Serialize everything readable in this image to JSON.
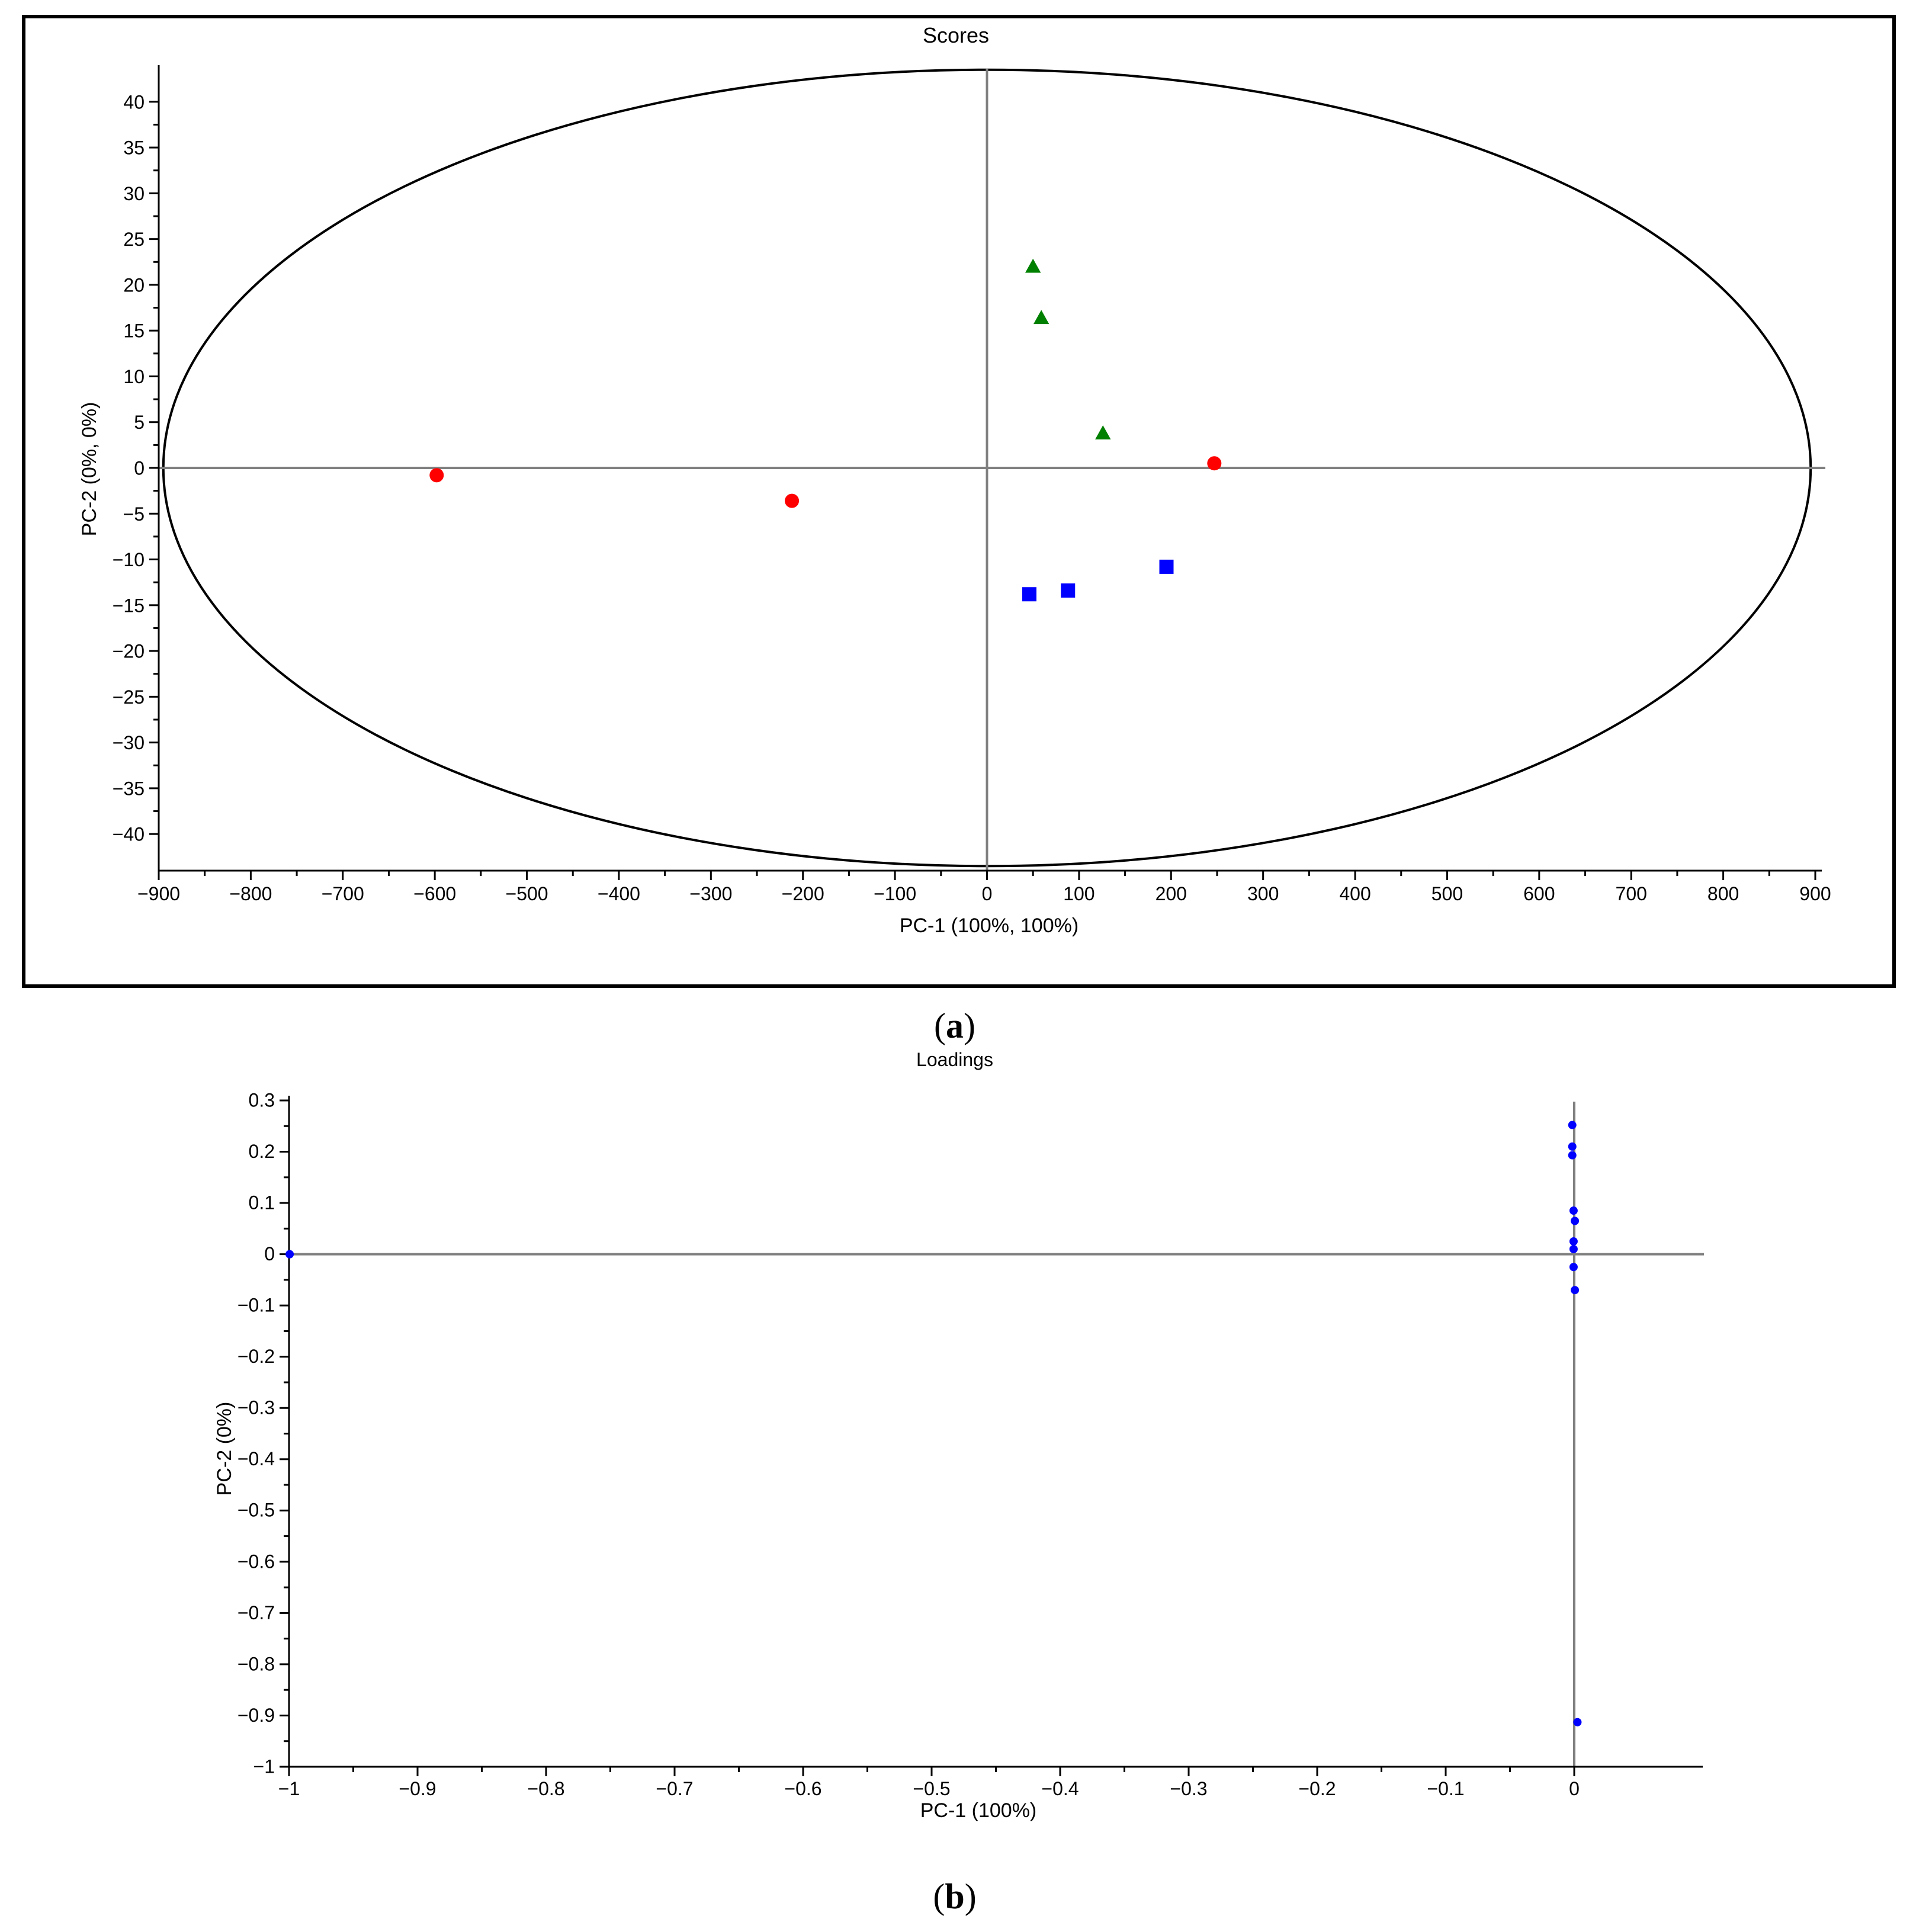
{
  "chart_data": [
    {
      "type": "scatter",
      "panel_label": "a",
      "title": "Scores",
      "xlabel": "PC-1 (100%, 100%)",
      "ylabel": "PC-2 (0%, 0%)",
      "xlim": [
        -900,
        900
      ],
      "ylim": [
        -44,
        44
      ],
      "xticks": [
        -900,
        -800,
        -700,
        -600,
        -500,
        -400,
        -300,
        -200,
        -100,
        0,
        100,
        200,
        300,
        400,
        500,
        600,
        700,
        800,
        900
      ],
      "yticks": [
        -40,
        -35,
        -30,
        -25,
        -20,
        -15,
        -10,
        -5,
        0,
        5,
        10,
        15,
        20,
        25,
        30,
        35,
        40
      ],
      "reference_lines": {
        "x": 0,
        "y": 0
      },
      "ellipse": {
        "center": [
          0,
          0
        ],
        "rx": 895,
        "ry": 43.5
      },
      "series": [
        {
          "marker": "circle",
          "color": "#ff0000",
          "points": [
            [
              -598,
              -0.8
            ],
            [
              -212,
              -3.6
            ],
            [
              247,
              0.5
            ]
          ]
        },
        {
          "marker": "triangle",
          "color": "#008000",
          "points": [
            [
              50,
              22.0
            ],
            [
              59,
              16.4
            ],
            [
              126,
              3.8
            ]
          ]
        },
        {
          "marker": "square",
          "color": "#0000ff",
          "points": [
            [
              46,
              -13.8
            ],
            [
              88,
              -13.4
            ],
            [
              195,
              -10.8
            ]
          ]
        }
      ]
    },
    {
      "type": "scatter",
      "panel_label": "b",
      "title": "Loadings",
      "xlabel": "PC-1 (100%)",
      "ylabel": "PC-2 (0%)",
      "xlim": [
        -1,
        0.1
      ],
      "ylim": [
        -1,
        0.3
      ],
      "xticks": [
        -1,
        -0.9,
        -0.8,
        -0.7,
        -0.6,
        -0.5,
        -0.4,
        -0.3,
        -0.2,
        -0.1,
        0
      ],
      "yticks": [
        -1,
        -0.9,
        -0.8,
        -0.7,
        -0.6,
        -0.5,
        -0.4,
        -0.3,
        -0.2,
        -0.1,
        0,
        0.1,
        0.2,
        0.3
      ],
      "reference_lines": {
        "x": 0,
        "y": 0
      },
      "series": [
        {
          "marker": "circle",
          "color": "#0000ff",
          "points": [
            [
              -0.9995,
              0.0
            ],
            [
              -0.0015,
              0.252
            ],
            [
              -0.0015,
              0.21
            ],
            [
              -0.0015,
              0.193
            ],
            [
              -0.0005,
              0.085
            ],
            [
              0.0005,
              0.065
            ],
            [
              -0.0005,
              0.025
            ],
            [
              -0.0005,
              0.01
            ],
            [
              -0.0005,
              -0.025
            ],
            [
              0.0005,
              -0.07
            ],
            [
              0.0025,
              -0.913
            ]
          ]
        }
      ]
    }
  ]
}
